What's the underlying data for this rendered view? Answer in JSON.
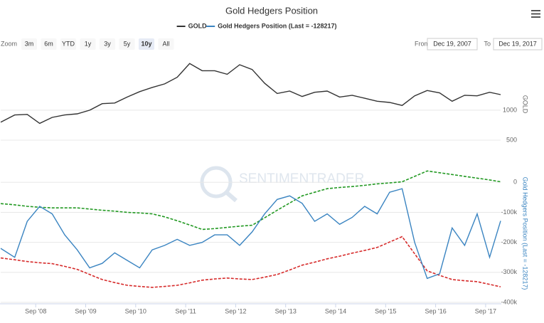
{
  "chart_data": [
    {
      "type": "line",
      "title": "Gold Hedgers Position",
      "ylabel": "GOLD",
      "x": [
        2007.97,
        2008.25,
        2008.5,
        2008.75,
        2009.0,
        2009.25,
        2009.5,
        2009.75,
        2010.0,
        2010.25,
        2010.5,
        2010.75,
        2011.0,
        2011.25,
        2011.5,
        2011.75,
        2012.0,
        2012.25,
        2012.5,
        2012.75,
        2013.0,
        2013.25,
        2013.5,
        2013.75,
        2014.0,
        2014.25,
        2014.5,
        2014.75,
        2015.0,
        2015.25,
        2015.5,
        2015.75,
        2016.0,
        2016.25,
        2016.5,
        2016.75,
        2017.0,
        2017.25,
        2017.5,
        2017.75,
        2017.97
      ],
      "xlim": [
        2007.97,
        2017.97
      ],
      "series": [
        {
          "name": "GOLD",
          "color": "#333333",
          "values": [
            800,
            920,
            930,
            780,
            880,
            920,
            940,
            1000,
            1110,
            1120,
            1220,
            1310,
            1380,
            1440,
            1550,
            1780,
            1660,
            1660,
            1600,
            1760,
            1680,
            1450,
            1280,
            1320,
            1230,
            1300,
            1320,
            1220,
            1250,
            1200,
            1150,
            1130,
            1080,
            1240,
            1330,
            1290,
            1150,
            1250,
            1240,
            1300,
            1260
          ]
        }
      ],
      "ylim": [
        250,
        1950
      ],
      "yticks": [
        500,
        1000
      ],
      "grid": true
    },
    {
      "type": "line",
      "ylabel": "Gold Hedgers Position (Last = -128217)",
      "watermark": "SENTIMENTRADER",
      "x": [
        2007.97,
        2008.25,
        2008.5,
        2008.75,
        2009.0,
        2009.25,
        2009.5,
        2009.75,
        2010.0,
        2010.25,
        2010.5,
        2010.75,
        2011.0,
        2011.25,
        2011.5,
        2011.75,
        2012.0,
        2012.25,
        2012.5,
        2012.75,
        2013.0,
        2013.25,
        2013.5,
        2013.75,
        2014.0,
        2014.25,
        2014.5,
        2014.75,
        2015.0,
        2015.25,
        2015.5,
        2015.75,
        2016.0,
        2016.25,
        2016.5,
        2016.75,
        2017.0,
        2017.25,
        2017.5,
        2017.75,
        2017.97
      ],
      "xlim": [
        2007.97,
        2017.97
      ],
      "xticks": [
        {
          "value": 2008.67,
          "label": "Sep '08"
        },
        {
          "value": 2009.67,
          "label": "Sep '09"
        },
        {
          "value": 2010.67,
          "label": "Sep '10"
        },
        {
          "value": 2011.67,
          "label": "Sep '11"
        },
        {
          "value": 2012.67,
          "label": "Sep '12"
        },
        {
          "value": 2013.67,
          "label": "Sep '13"
        },
        {
          "value": 2014.67,
          "label": "Sep '14"
        },
        {
          "value": 2015.67,
          "label": "Sep '15"
        },
        {
          "value": 2016.67,
          "label": "Sep '16"
        },
        {
          "value": 2017.67,
          "label": "Sep '17"
        }
      ],
      "series": [
        {
          "name": "Gold Hedgers Position (Last = -128217)",
          "color": "#3a84c1",
          "values": [
            -220000,
            -250000,
            -130000,
            -80000,
            -105000,
            -175000,
            -225000,
            -285000,
            -270000,
            -235000,
            -260000,
            -285000,
            -225000,
            -210000,
            -190000,
            -210000,
            -200000,
            -175000,
            -175000,
            -210000,
            -165000,
            -105000,
            -57000,
            -45000,
            -70000,
            -130000,
            -105000,
            -140000,
            -117000,
            -80000,
            -105000,
            -33000,
            -21000,
            -200000,
            -320000,
            -305000,
            -152000,
            -210000,
            -105000,
            -250000,
            -128217
          ]
        },
        {
          "color": "#229922",
          "style": "dashed",
          "values": [
            -71000,
            -75000,
            -80000,
            -83000,
            -85000,
            -85000,
            -85000,
            -89000,
            -93000,
            -96000,
            -100000,
            -102000,
            -105000,
            -115000,
            -128000,
            -142000,
            -157000,
            -154000,
            -150000,
            -146000,
            -143000,
            -118000,
            -93000,
            -69000,
            -45000,
            -33000,
            -21000,
            -17000,
            -14000,
            -10000,
            -5000,
            -2000,
            2000,
            20000,
            38000,
            32000,
            26000,
            20000,
            14000,
            8000,
            2000
          ]
        },
        {
          "color": "#d62a2a",
          "style": "dashed",
          "values": [
            -252000,
            -258000,
            -264000,
            -268000,
            -271000,
            -280000,
            -290000,
            -307000,
            -324000,
            -334000,
            -343000,
            -347000,
            -350000,
            -347000,
            -343000,
            -335000,
            -326000,
            -322000,
            -319000,
            -322000,
            -324000,
            -316000,
            -307000,
            -292000,
            -276000,
            -266000,
            -255000,
            -246000,
            -236000,
            -227000,
            -217000,
            -199000,
            -181000,
            -238000,
            -295000,
            -310000,
            -324000,
            -328000,
            -331000,
            -340000,
            -348000
          ]
        }
      ],
      "ylim": [
        -400000,
        60000
      ],
      "yticks": [
        0,
        {
          "value": -100000,
          "label": "-100k"
        },
        {
          "value": -200000,
          "label": "-200k"
        },
        {
          "value": -300000,
          "label": "-300k"
        },
        {
          "value": -400000,
          "label": "-400k"
        }
      ],
      "grid": true
    }
  ],
  "range_selector": {
    "zoom_label": "Zoom",
    "buttons": [
      "3m",
      "6m",
      "YTD",
      "1y",
      "3y",
      "5y",
      "10y",
      "All"
    ],
    "selected": 6,
    "from_label": "From",
    "from": "Dec 19, 2007",
    "to_label": "To",
    "to": "Dec 19, 2017"
  }
}
